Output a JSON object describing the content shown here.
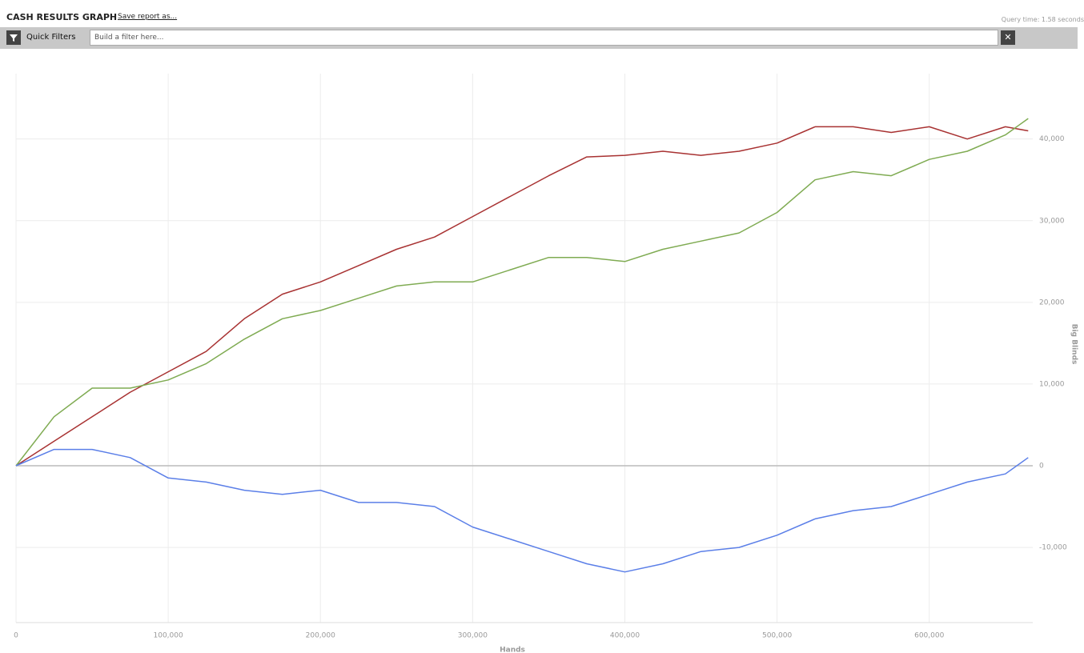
{
  "header": {
    "title": "CASH RESULTS GRAPH",
    "save_link": "Save report as...",
    "query_time": "Query time: 1.58 seconds"
  },
  "toolbar": {
    "label": "Quick Filters",
    "placeholder": "Build a filter here..."
  },
  "chart_data": {
    "type": "line",
    "x_label": "Hands",
    "y_label": "Big Blinds",
    "x": [
      0,
      25000,
      50000,
      75000,
      100000,
      125000,
      150000,
      175000,
      200000,
      225000,
      250000,
      275000,
      300000,
      325000,
      350000,
      375000,
      400000,
      425000,
      450000,
      475000,
      500000,
      525000,
      550000,
      575000,
      600000,
      625000,
      650000,
      665000
    ],
    "series": [
      {
        "color": "#a83232",
        "values": [
          0,
          3000,
          6000,
          9000,
          11500,
          14000,
          18000,
          21000,
          22500,
          24500,
          26500,
          28000,
          30500,
          33000,
          35500,
          37800,
          38000,
          38500,
          38000,
          38500,
          39500,
          41500,
          41500,
          40800,
          41500,
          40000,
          41500,
          41000
        ]
      },
      {
        "color": "#7fab52",
        "values": [
          0,
          6000,
          9500,
          9500,
          10500,
          12500,
          15500,
          18000,
          19000,
          20500,
          22000,
          22500,
          22500,
          24000,
          25500,
          25500,
          25000,
          26500,
          27500,
          28500,
          31000,
          35000,
          36000,
          35500,
          37500,
          38500,
          40500,
          42500
        ]
      },
      {
        "color": "#5b7fe8",
        "values": [
          0,
          2000,
          2000,
          1000,
          -1500,
          -2000,
          -3000,
          -3500,
          -3000,
          -4500,
          -4500,
          -5000,
          -7500,
          -9000,
          -10500,
          -12000,
          -13000,
          -12000,
          -10500,
          -10000,
          -8500,
          -6500,
          -5500,
          -5000,
          -3500,
          -2000,
          -1000,
          1000
        ]
      }
    ],
    "xlim": [
      0,
      668000
    ],
    "ylim": [
      -19200,
      48000
    ],
    "xticks": [
      0,
      {
        "value": 100000,
        "label": "100,000"
      },
      {
        "value": 200000,
        "label": "200,000"
      },
      {
        "value": 300000,
        "label": "300,000"
      },
      {
        "value": 400000,
        "label": "400,000"
      },
      {
        "value": 500000,
        "label": "500,000"
      },
      {
        "value": 600000,
        "label": "600,000"
      }
    ],
    "yticks": [
      {
        "value": -10000,
        "label": "-10,000"
      },
      0,
      {
        "value": 10000,
        "label": "10,000"
      },
      {
        "value": 20000,
        "label": "20,000"
      },
      {
        "value": 30000,
        "label": "30,000"
      },
      {
        "value": 40000,
        "label": "40,000"
      }
    ],
    "grid": true
  }
}
